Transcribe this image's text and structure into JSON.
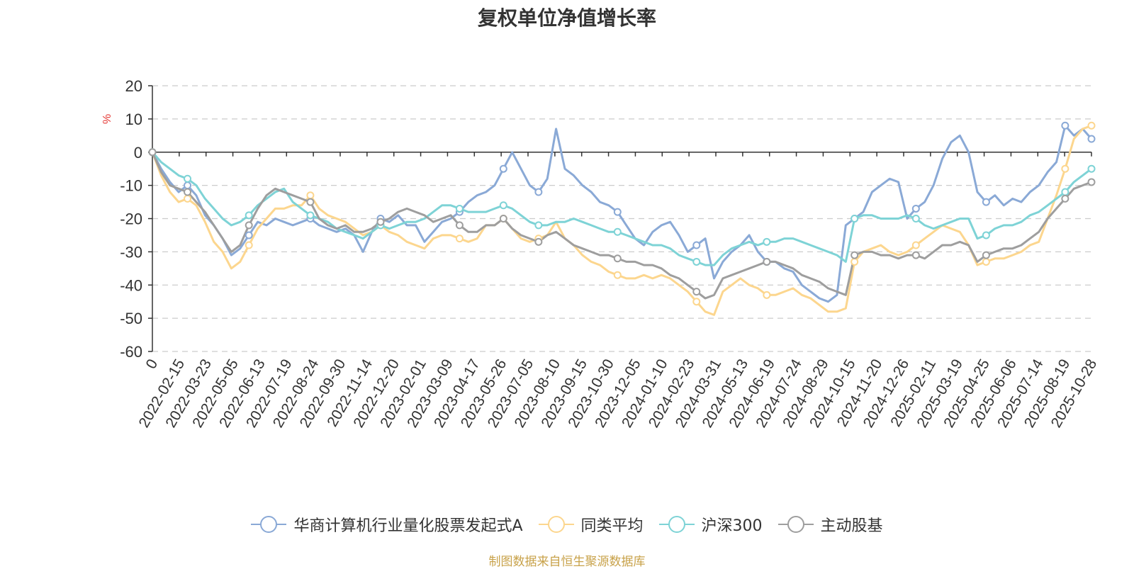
{
  "title": "复权单位净值增长率",
  "source_text": "制图数据来自恒生聚源数据库",
  "chart_data": {
    "type": "line",
    "ylabel": "%",
    "ylim": [
      -60,
      20
    ],
    "yticks": [
      20,
      10,
      0,
      -10,
      -20,
      -30,
      -40,
      -50,
      -60
    ],
    "grid": true,
    "legend_position": "bottom",
    "x_tick_labels": [
      "0",
      "2022-02-15",
      "2022-03-23",
      "2022-05-05",
      "2022-06-13",
      "2022-07-19",
      "2022-08-24",
      "2022-09-30",
      "2022-11-14",
      "2022-12-20",
      "2023-02-01",
      "2023-03-09",
      "2023-04-17",
      "2023-05-26",
      "2023-07-05",
      "2023-08-10",
      "2023-09-15",
      "2023-10-30",
      "2023-12-05",
      "2024-01-10",
      "2024-02-23",
      "2024-03-31",
      "2024-05-13",
      "2024-06-19",
      "2024-07-24",
      "2024-08-29",
      "2024-10-15",
      "2024-11-20",
      "2024-12-26",
      "2025-02-11",
      "2025-03-19",
      "2025-04-25",
      "2025-06-06",
      "2025-07-14",
      "2025-08-19",
      "2025-10-28"
    ],
    "series": [
      {
        "name": "华商计算机行业量化股票发起式A",
        "color": "#8aa9d6",
        "values": [
          0,
          -5,
          -9,
          -12,
          -10,
          -13,
          -19,
          -22,
          -26,
          -31,
          -29,
          -25,
          -21,
          -22,
          -20,
          -21,
          -22,
          -21,
          -20,
          -22,
          -23,
          -24,
          -23,
          -25,
          -30,
          -24,
          -20,
          -21,
          -19,
          -22,
          -22,
          -27,
          -24,
          -21,
          -20,
          -18,
          -15,
          -13,
          -12,
          -10,
          -5,
          0,
          -5,
          -10,
          -12,
          -8,
          7,
          -5,
          -7,
          -10,
          -12,
          -15,
          -16,
          -18,
          -22,
          -26,
          -28,
          -24,
          -22,
          -21,
          -25,
          -30,
          -28,
          -26,
          -38,
          -33,
          -30,
          -28,
          -25,
          -30,
          -33,
          -33,
          -35,
          -36,
          -40,
          -42,
          -44,
          -45,
          -43,
          -22,
          -20,
          -18,
          -12,
          -10,
          -8,
          -9,
          -20,
          -17,
          -15,
          -10,
          -2,
          3,
          5,
          0,
          -12,
          -15,
          -13,
          -16,
          -14,
          -15,
          -12,
          -10,
          -6,
          -3,
          8,
          5,
          7,
          4
        ],
        "markers": [
          0,
          4,
          11,
          18,
          26,
          35,
          40,
          44,
          53,
          62,
          70,
          80,
          87,
          95,
          104,
          107
        ]
      },
      {
        "name": "同类平均",
        "color": "#fcd68e",
        "values": [
          0,
          -7,
          -12,
          -15,
          -14,
          -16,
          -21,
          -27,
          -30,
          -35,
          -33,
          -28,
          -23,
          -20,
          -17,
          -17,
          -16,
          -16,
          -13,
          -17,
          -19,
          -20,
          -21,
          -23,
          -25,
          -24,
          -22,
          -24,
          -25,
          -27,
          -28,
          -29,
          -26,
          -25,
          -25,
          -26,
          -27,
          -26,
          -22,
          -22,
          -20,
          -23,
          -26,
          -27,
          -26,
          -25,
          -21,
          -26,
          -28,
          -31,
          -33,
          -34,
          -36,
          -37,
          -38,
          -38,
          -37,
          -38,
          -37,
          -38,
          -40,
          -42,
          -45,
          -48,
          -49,
          -42,
          -40,
          -38,
          -40,
          -41,
          -43,
          -43,
          -42,
          -41,
          -43,
          -44,
          -46,
          -48,
          -48,
          -47,
          -33,
          -30,
          -29,
          -28,
          -30,
          -31,
          -30,
          -28,
          -26,
          -24,
          -22,
          -23,
          -24,
          -28,
          -34,
          -33,
          -32,
          -32,
          -31,
          -30,
          -28,
          -27,
          -20,
          -13,
          -5,
          4,
          7,
          8
        ],
        "markers": [
          0,
          4,
          11,
          18,
          26,
          35,
          40,
          44,
          53,
          62,
          70,
          80,
          87,
          95,
          104,
          107
        ]
      },
      {
        "name": "沪深300",
        "color": "#7ed3d6",
        "values": [
          0,
          -3,
          -5,
          -7,
          -8,
          -10,
          -14,
          -17,
          -20,
          -22,
          -21,
          -19,
          -16,
          -14,
          -12,
          -11,
          -15,
          -17,
          -19,
          -20,
          -21,
          -23,
          -24,
          -25,
          -26,
          -24,
          -22,
          -23,
          -22,
          -21,
          -21,
          -20,
          -18,
          -16,
          -16,
          -17,
          -18,
          -18,
          -18,
          -17,
          -16,
          -17,
          -19,
          -21,
          -22,
          -22,
          -21,
          -21,
          -20,
          -21,
          -22,
          -23,
          -24,
          -24,
          -25,
          -26,
          -27,
          -28,
          -28,
          -29,
          -31,
          -32,
          -33,
          -34,
          -34,
          -31,
          -29,
          -28,
          -27,
          -28,
          -27,
          -27,
          -26,
          -26,
          -27,
          -28,
          -29,
          -30,
          -31,
          -33,
          -20,
          -19,
          -19,
          -20,
          -20,
          -20,
          -19,
          -20,
          -22,
          -23,
          -22,
          -21,
          -20,
          -20,
          -26,
          -25,
          -23,
          -22,
          -22,
          -21,
          -19,
          -18,
          -16,
          -14,
          -12,
          -9,
          -7,
          -5
        ],
        "markers": [
          0,
          4,
          11,
          18,
          26,
          35,
          40,
          44,
          53,
          62,
          70,
          80,
          87,
          95,
          104,
          107
        ]
      },
      {
        "name": "主动股基",
        "color": "#9e9e9e",
        "values": [
          0,
          -6,
          -10,
          -11,
          -12,
          -15,
          -18,
          -22,
          -26,
          -30,
          -28,
          -22,
          -17,
          -13,
          -11,
          -12,
          -13,
          -14,
          -15,
          -20,
          -22,
          -23,
          -22,
          -24,
          -24,
          -23,
          -21,
          -20,
          -18,
          -17,
          -18,
          -19,
          -21,
          -20,
          -19,
          -22,
          -24,
          -24,
          -22,
          -22,
          -20,
          -23,
          -25,
          -26,
          -27,
          -25,
          -24,
          -26,
          -28,
          -29,
          -30,
          -31,
          -31,
          -32,
          -33,
          -33,
          -34,
          -34,
          -35,
          -37,
          -38,
          -40,
          -42,
          -44,
          -43,
          -38,
          -37,
          -36,
          -35,
          -34,
          -33,
          -33,
          -34,
          -35,
          -37,
          -38,
          -39,
          -41,
          -42,
          -43,
          -31,
          -30,
          -30,
          -31,
          -31,
          -32,
          -31,
          -31,
          -32,
          -30,
          -28,
          -28,
          -27,
          -28,
          -33,
          -31,
          -30,
          -29,
          -29,
          -28,
          -26,
          -24,
          -20,
          -17,
          -14,
          -11,
          -10,
          -9
        ],
        "markers": [
          0,
          4,
          11,
          18,
          26,
          35,
          40,
          44,
          53,
          62,
          70,
          80,
          87,
          95,
          104,
          107
        ]
      }
    ]
  }
}
